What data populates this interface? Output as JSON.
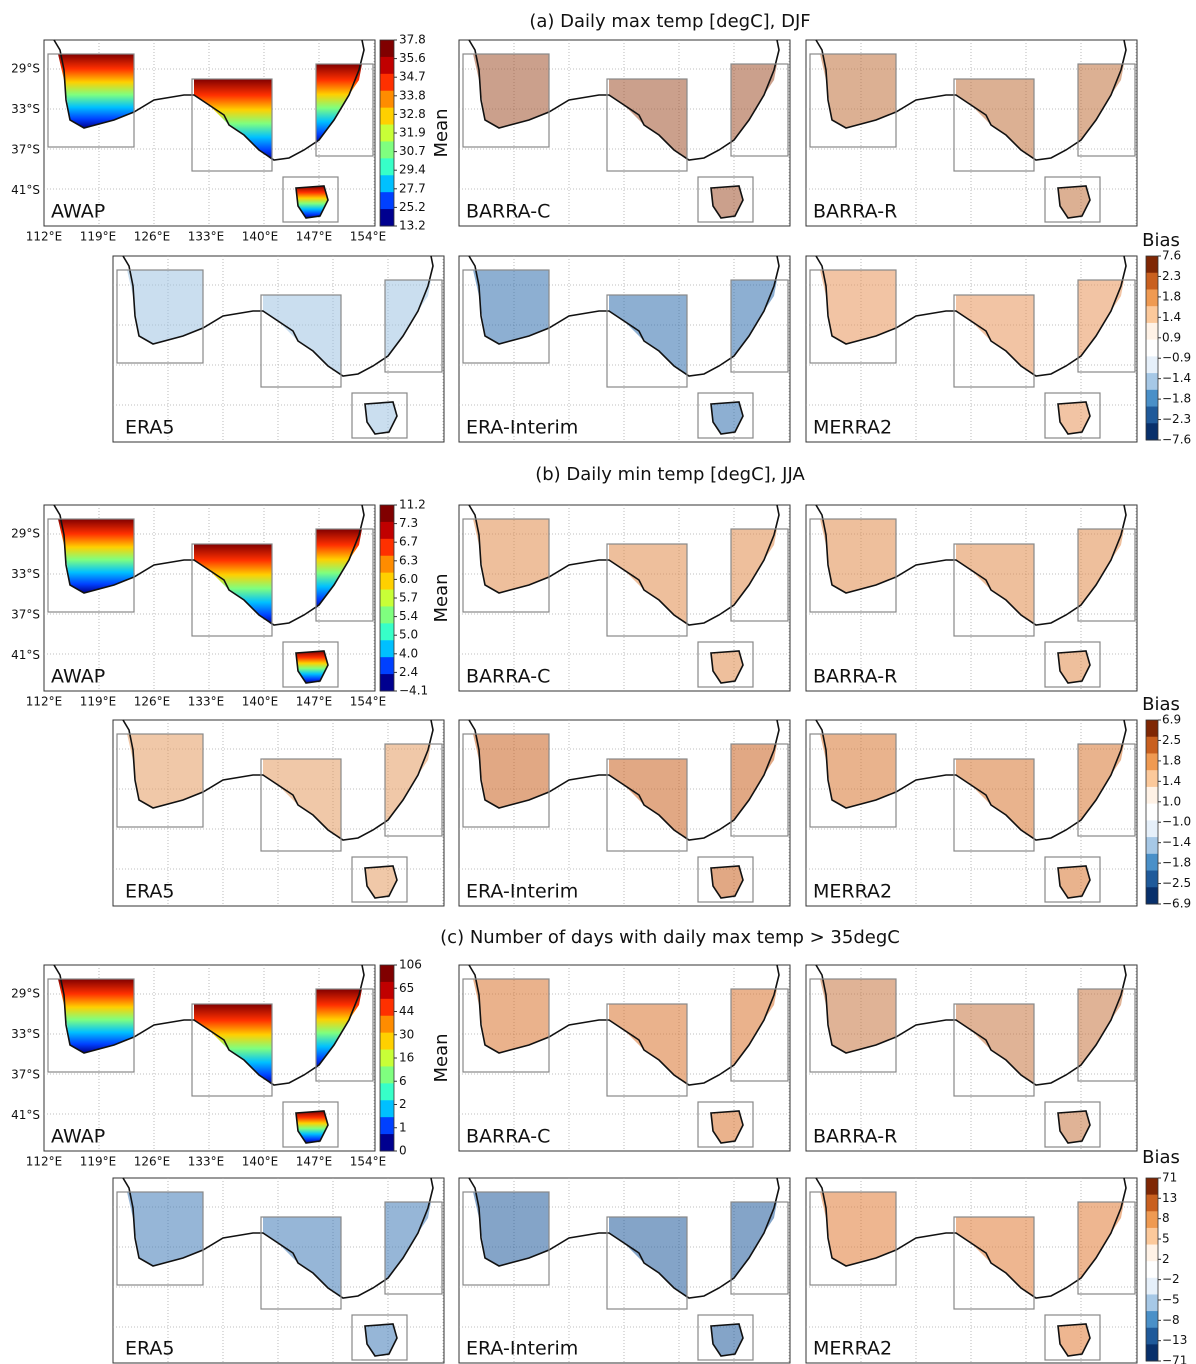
{
  "sections": [
    {
      "title": "(a) Daily max temp [degC], DJF",
      "mean_label": "Mean",
      "bias_label": "Bias",
      "mean_ticks": [
        "37.8",
        "35.6",
        "34.7",
        "33.8",
        "32.8",
        "31.9",
        "30.7",
        "29.4",
        "27.7",
        "25.2",
        "13.2"
      ],
      "bias_ticks": [
        "7.6",
        "2.3",
        "1.8",
        "1.4",
        "0.9",
        "−0.9",
        "−1.4",
        "−1.8",
        "−2.3",
        "−7.6"
      ],
      "panels": [
        {
          "label": "AWAP"
        },
        {
          "label": "BARRA-C",
          "color": "#a0522d"
        },
        {
          "label": "BARRA-R",
          "color": "#c0703a"
        },
        {
          "label": "ERA5",
          "color": "#9ec3e2"
        },
        {
          "label": "ERA-Interim",
          "color": "#2f6ead"
        },
        {
          "label": "MERRA2",
          "color": "#e8945a"
        }
      ]
    },
    {
      "title": "(b) Daily min temp [degC], JJA",
      "mean_label": "Mean",
      "bias_label": "Bias",
      "mean_ticks": [
        "11.2",
        "7.3",
        "6.7",
        "6.3",
        "6.0",
        "5.7",
        "5.4",
        "5.0",
        "4.0",
        "2.4",
        "−4.1"
      ],
      "bias_ticks": [
        "6.9",
        "2.5",
        "1.8",
        "1.4",
        "1.0",
        "−1.0",
        "−1.4",
        "−1.8",
        "−2.5",
        "−6.9"
      ],
      "panels": [
        {
          "label": "AWAP"
        },
        {
          "label": "BARRA-C",
          "color": "#e08a4a"
        },
        {
          "label": "BARRA-R",
          "color": "#e08a4a"
        },
        {
          "label": "ERA5",
          "color": "#e39a60"
        },
        {
          "label": "ERA-Interim",
          "color": "#c9601f"
        },
        {
          "label": "MERRA2",
          "color": "#d77430"
        }
      ]
    },
    {
      "title": "(c) Number of days with daily max temp > 35degC",
      "mean_label": "Mean",
      "bias_label": "Bias",
      "mean_ticks": [
        "106",
        "65",
        "44",
        "30",
        "16",
        "6",
        "2",
        "1",
        "0"
      ],
      "bias_ticks": [
        "71",
        "13",
        "8",
        "5",
        "2",
        "−2",
        "−5",
        "−8",
        "−13",
        "−71"
      ],
      "panels": [
        {
          "label": "AWAP"
        },
        {
          "label": "BARRA-C",
          "color": "#d9732e"
        },
        {
          "label": "BARRA-R",
          "color": "#c77440"
        },
        {
          "label": "ERA5",
          "color": "#3f7ab7"
        },
        {
          "label": "ERA-Interim",
          "color": "#1f5a9a"
        },
        {
          "label": "MERRA2",
          "color": "#e07a35"
        }
      ]
    }
  ],
  "lat_labels": [
    "29°S",
    "33°S",
    "37°S",
    "41°S"
  ],
  "lon_labels": [
    "112°E",
    "119°E",
    "126°E",
    "133°E",
    "140°E",
    "147°E",
    "154°E"
  ]
}
